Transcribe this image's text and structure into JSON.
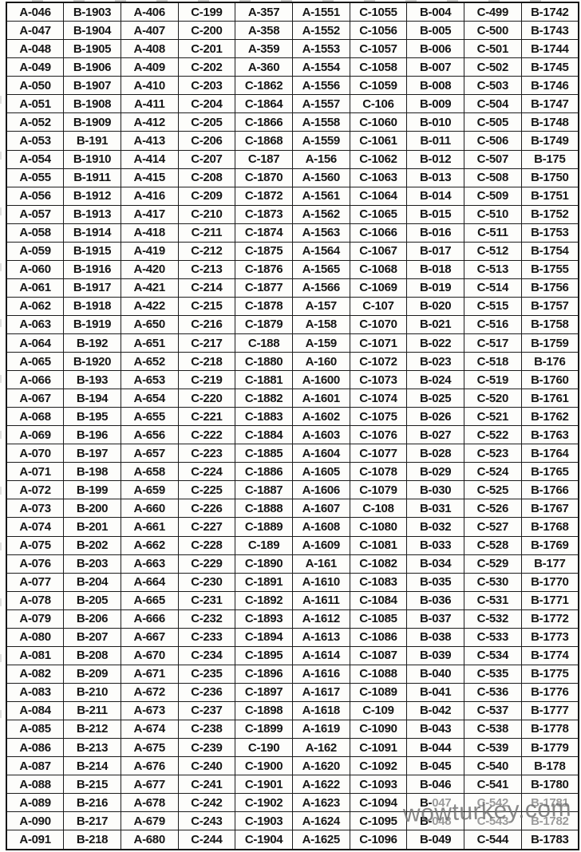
{
  "table": {
    "columns": 10,
    "rows": [
      [
        "A-046",
        "B-1903",
        "A-406",
        "C-199",
        "A-357",
        "A-1551",
        "C-1055",
        "B-004",
        "C-499",
        "B-1742"
      ],
      [
        "A-047",
        "B-1904",
        "A-407",
        "C-200",
        "A-358",
        "A-1552",
        "C-1056",
        "B-005",
        "C-500",
        "B-1743"
      ],
      [
        "A-048",
        "B-1905",
        "A-408",
        "C-201",
        "A-359",
        "A-1553",
        "C-1057",
        "B-006",
        "C-501",
        "B-1744"
      ],
      [
        "A-049",
        "B-1906",
        "A-409",
        "C-202",
        "A-360",
        "A-1554",
        "C-1058",
        "B-007",
        "C-502",
        "B-1745"
      ],
      [
        "A-050",
        "B-1907",
        "A-410",
        "C-203",
        "C-1862",
        "A-1556",
        "C-1059",
        "B-008",
        "C-503",
        "B-1746"
      ],
      [
        "A-051",
        "B-1908",
        "A-411",
        "C-204",
        "C-1864",
        "A-1557",
        "C-106",
        "B-009",
        "C-504",
        "B-1747"
      ],
      [
        "A-052",
        "B-1909",
        "A-412",
        "C-205",
        "C-1866",
        "A-1558",
        "C-1060",
        "B-010",
        "C-505",
        "B-1748"
      ],
      [
        "A-053",
        "B-191",
        "A-413",
        "C-206",
        "C-1868",
        "A-1559",
        "C-1061",
        "B-011",
        "C-506",
        "B-1749"
      ],
      [
        "A-054",
        "B-1910",
        "A-414",
        "C-207",
        "C-187",
        "A-156",
        "C-1062",
        "B-012",
        "C-507",
        "B-175"
      ],
      [
        "A-055",
        "B-1911",
        "A-415",
        "C-208",
        "C-1870",
        "A-1560",
        "C-1063",
        "B-013",
        "C-508",
        "B-1750"
      ],
      [
        "A-056",
        "B-1912",
        "A-416",
        "C-209",
        "C-1872",
        "A-1561",
        "C-1064",
        "B-014",
        "C-509",
        "B-1751"
      ],
      [
        "A-057",
        "B-1913",
        "A-417",
        "C-210",
        "C-1873",
        "A-1562",
        "C-1065",
        "B-015",
        "C-510",
        "B-1752"
      ],
      [
        "A-058",
        "B-1914",
        "A-418",
        "C-211",
        "C-1874",
        "A-1563",
        "C-1066",
        "B-016",
        "C-511",
        "B-1753"
      ],
      [
        "A-059",
        "B-1915",
        "A-419",
        "C-212",
        "C-1875",
        "A-1564",
        "C-1067",
        "B-017",
        "C-512",
        "B-1754"
      ],
      [
        "A-060",
        "B-1916",
        "A-420",
        "C-213",
        "C-1876",
        "A-1565",
        "C-1068",
        "B-018",
        "C-513",
        "B-1755"
      ],
      [
        "A-061",
        "B-1917",
        "A-421",
        "C-214",
        "C-1877",
        "A-1566",
        "C-1069",
        "B-019",
        "C-514",
        "B-1756"
      ],
      [
        "A-062",
        "B-1918",
        "A-422",
        "C-215",
        "C-1878",
        "A-157",
        "C-107",
        "B-020",
        "C-515",
        "B-1757"
      ],
      [
        "A-063",
        "B-1919",
        "A-650",
        "C-216",
        "C-1879",
        "A-158",
        "C-1070",
        "B-021",
        "C-516",
        "B-1758"
      ],
      [
        "A-064",
        "B-192",
        "A-651",
        "C-217",
        "C-188",
        "A-159",
        "C-1071",
        "B-022",
        "C-517",
        "B-1759"
      ],
      [
        "A-065",
        "B-1920",
        "A-652",
        "C-218",
        "C-1880",
        "A-160",
        "C-1072",
        "B-023",
        "C-518",
        "B-176"
      ],
      [
        "A-066",
        "B-193",
        "A-653",
        "C-219",
        "C-1881",
        "A-1600",
        "C-1073",
        "B-024",
        "C-519",
        "B-1760"
      ],
      [
        "A-067",
        "B-194",
        "A-654",
        "C-220",
        "C-1882",
        "A-1601",
        "C-1074",
        "B-025",
        "C-520",
        "B-1761"
      ],
      [
        "A-068",
        "B-195",
        "A-655",
        "C-221",
        "C-1883",
        "A-1602",
        "C-1075",
        "B-026",
        "C-521",
        "B-1762"
      ],
      [
        "A-069",
        "B-196",
        "A-656",
        "C-222",
        "C-1884",
        "A-1603",
        "C-1076",
        "B-027",
        "C-522",
        "B-1763"
      ],
      [
        "A-070",
        "B-197",
        "A-657",
        "C-223",
        "C-1885",
        "A-1604",
        "C-1077",
        "B-028",
        "C-523",
        "B-1764"
      ],
      [
        "A-071",
        "B-198",
        "A-658",
        "C-224",
        "C-1886",
        "A-1605",
        "C-1078",
        "B-029",
        "C-524",
        "B-1765"
      ],
      [
        "A-072",
        "B-199",
        "A-659",
        "C-225",
        "C-1887",
        "A-1606",
        "C-1079",
        "B-030",
        "C-525",
        "B-1766"
      ],
      [
        "A-073",
        "B-200",
        "A-660",
        "C-226",
        "C-1888",
        "A-1607",
        "C-108",
        "B-031",
        "C-526",
        "B-1767"
      ],
      [
        "A-074",
        "B-201",
        "A-661",
        "C-227",
        "C-1889",
        "A-1608",
        "C-1080",
        "B-032",
        "C-527",
        "B-1768"
      ],
      [
        "A-075",
        "B-202",
        "A-662",
        "C-228",
        "C-189",
        "A-1609",
        "C-1081",
        "B-033",
        "C-528",
        "B-1769"
      ],
      [
        "A-076",
        "B-203",
        "A-663",
        "C-229",
        "C-1890",
        "A-161",
        "C-1082",
        "B-034",
        "C-529",
        "B-177"
      ],
      [
        "A-077",
        "B-204",
        "A-664",
        "C-230",
        "C-1891",
        "A-1610",
        "C-1083",
        "B-035",
        "C-530",
        "B-1770"
      ],
      [
        "A-078",
        "B-205",
        "A-665",
        "C-231",
        "C-1892",
        "A-1611",
        "C-1084",
        "B-036",
        "C-531",
        "B-1771"
      ],
      [
        "A-079",
        "B-206",
        "A-666",
        "C-232",
        "C-1893",
        "A-1612",
        "C-1085",
        "B-037",
        "C-532",
        "B-1772"
      ],
      [
        "A-080",
        "B-207",
        "A-667",
        "C-233",
        "C-1894",
        "A-1613",
        "C-1086",
        "B-038",
        "C-533",
        "B-1773"
      ],
      [
        "A-081",
        "B-208",
        "A-670",
        "C-234",
        "C-1895",
        "A-1614",
        "C-1087",
        "B-039",
        "C-534",
        "B-1774"
      ],
      [
        "A-082",
        "B-209",
        "A-671",
        "C-235",
        "C-1896",
        "A-1616",
        "C-1088",
        "B-040",
        "C-535",
        "B-1775"
      ],
      [
        "A-083",
        "B-210",
        "A-672",
        "C-236",
        "C-1897",
        "A-1617",
        "C-1089",
        "B-041",
        "C-536",
        "B-1776"
      ],
      [
        "A-084",
        "B-211",
        "A-673",
        "C-237",
        "C-1898",
        "A-1618",
        "C-109",
        "B-042",
        "C-537",
        "B-1777"
      ],
      [
        "A-085",
        "B-212",
        "A-674",
        "C-238",
        "C-1899",
        "A-1619",
        "C-1090",
        "B-043",
        "C-538",
        "B-1778"
      ],
      [
        "A-086",
        "B-213",
        "A-675",
        "C-239",
        "C-190",
        "A-162",
        "C-1091",
        "B-044",
        "C-539",
        "B-1779"
      ],
      [
        "A-087",
        "B-214",
        "A-676",
        "C-240",
        "C-1900",
        "A-1620",
        "C-1092",
        "B-045",
        "C-540",
        "B-178"
      ],
      [
        "A-088",
        "B-215",
        "A-677",
        "C-241",
        "C-1901",
        "A-1622",
        "C-1093",
        "B-046",
        "C-541",
        "B-1780"
      ],
      [
        "A-089",
        "B-216",
        "A-678",
        "C-242",
        "C-1902",
        "A-1623",
        "C-1094",
        "B-047",
        "C-542",
        "B-1781"
      ],
      [
        "A-090",
        "B-217",
        "A-679",
        "C-243",
        "C-1903",
        "A-1624",
        "C-1095",
        "B-048",
        "C-543",
        "B-1782"
      ],
      [
        "A-091",
        "B-218",
        "A-680",
        "C-244",
        "C-1904",
        "A-1625",
        "C-1096",
        "B-049",
        "C-544",
        "B-1783"
      ]
    ]
  },
  "watermark": {
    "text": "wowturkey.com",
    "color": "#6e6e6e",
    "faded_cells": [
      {
        "row": 43,
        "col": 7,
        "prefix_dark": true
      },
      {
        "row": 43,
        "col": 8,
        "prefix_dark": false
      },
      {
        "row": 43,
        "col": 9,
        "prefix_dark": false
      },
      {
        "row": 44,
        "col": 7,
        "prefix_dark": true
      },
      {
        "row": 44,
        "col": 8,
        "prefix_dark": false
      },
      {
        "row": 44,
        "col": 9,
        "prefix_dark": false
      }
    ]
  },
  "colors": {
    "text": "#161616",
    "border": "#1c1c1c",
    "paper": "#fdfdfb"
  }
}
